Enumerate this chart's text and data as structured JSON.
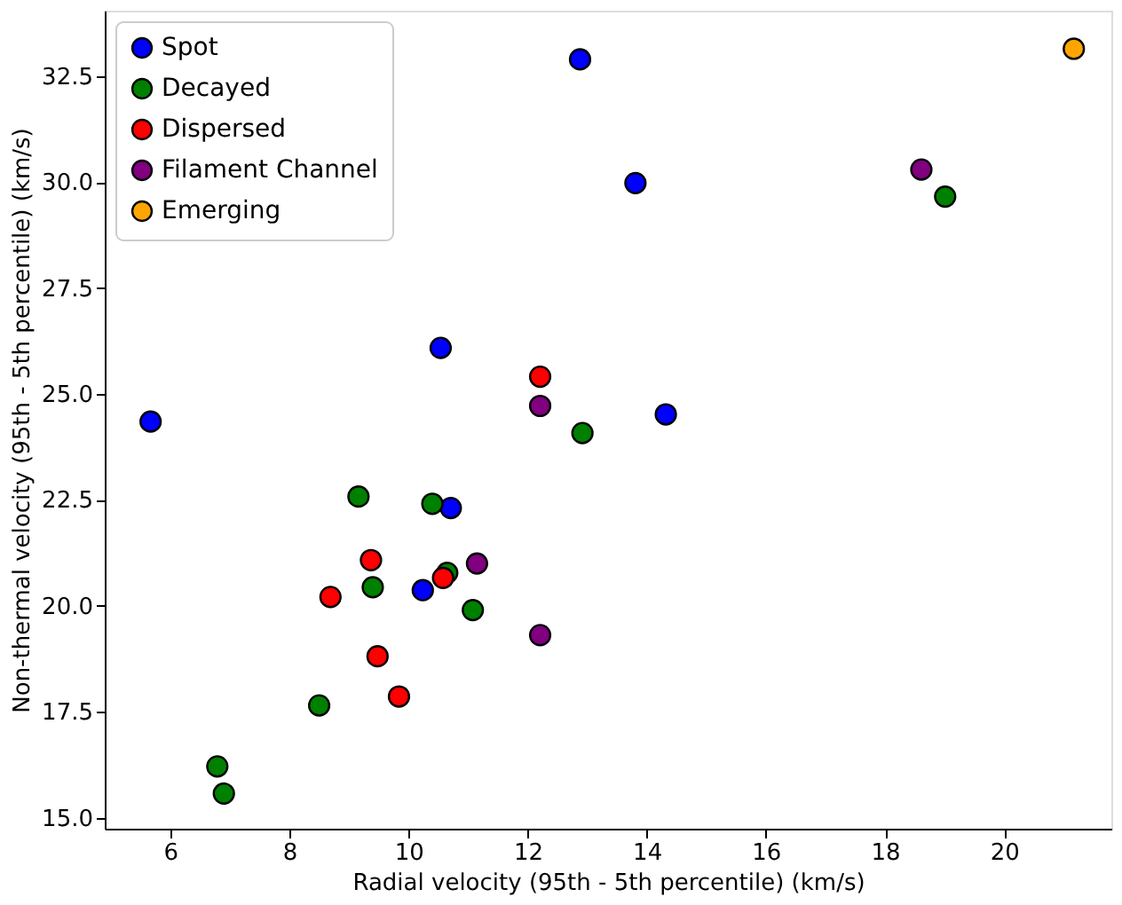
{
  "chart_data": {
    "type": "scatter",
    "xlabel": "Radial velocity (95th - 5th percentile) (km/s)",
    "ylabel": "Non-thermal velocity (95th - 5th percentile) (km/s)",
    "xlim": [
      4.9,
      21.8
    ],
    "xticks": [
      6,
      8,
      10,
      12,
      14,
      16,
      18,
      20
    ],
    "ylim": [
      14.74,
      34.05
    ],
    "yticks": [
      {
        "value": 15,
        "label": "15.0"
      },
      {
        "value": 17.5,
        "label": "17.5"
      },
      {
        "value": 20,
        "label": "20.0"
      },
      {
        "value": 22.5,
        "label": "22.5"
      },
      {
        "value": 25,
        "label": "25.0"
      },
      {
        "value": 27.5,
        "label": "27.5"
      },
      {
        "value": 30,
        "label": "30.0"
      },
      {
        "value": 32.5,
        "label": "32.5"
      }
    ],
    "grid": false,
    "legend": "top left",
    "marker": "circle",
    "series": [
      {
        "name": "Spot",
        "color": "#0000ff",
        "x": [
          12.88,
          10.54,
          5.67,
          13.81,
          14.32,
          10.71,
          10.24
        ],
        "values": [
          32.9,
          26.09,
          24.35,
          29.98,
          24.52,
          22.31,
          20.37
        ]
      },
      {
        "name": "Decayed",
        "color": "#008000",
        "x": [
          12.92,
          19.01,
          9.16,
          10.4,
          10.65,
          9.4,
          11.08,
          8.5,
          6.79,
          6.9
        ],
        "values": [
          24.08,
          29.66,
          22.58,
          22.41,
          20.78,
          20.44,
          19.9,
          17.65,
          16.21,
          15.57
        ]
      },
      {
        "name": "Dispersed",
        "color": "#ff0000",
        "x": [
          12.21,
          9.37,
          10.58,
          8.69,
          9.48,
          9.84
        ],
        "values": [
          25.41,
          21.08,
          20.66,
          20.21,
          18.81,
          17.86
        ]
      },
      {
        "name": "Filament Channel",
        "color": "#800080",
        "x": [
          12.21,
          18.61,
          11.15,
          12.21
        ],
        "values": [
          24.72,
          30.3,
          21.0,
          19.31
        ]
      },
      {
        "name": "Emerging",
        "color": "#ffa500",
        "x": [
          21.17
        ],
        "values": [
          33.15
        ]
      }
    ]
  }
}
